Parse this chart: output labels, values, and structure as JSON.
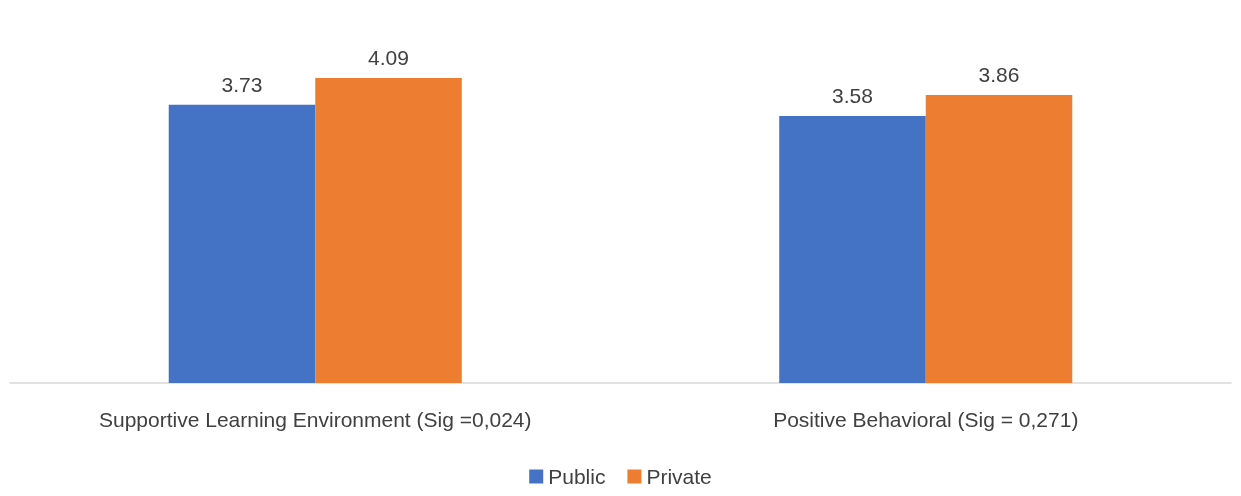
{
  "chart_data": {
    "type": "bar",
    "categories": [
      "Supportive Learning Environment (Sig =0,024)",
      "Positive Behavioral (Sig = 0,271)"
    ],
    "series": [
      {
        "name": "Public",
        "color": "#4472c4",
        "values": [
          3.73,
          3.58
        ]
      },
      {
        "name": "Private",
        "color": "#ed7d31",
        "values": [
          4.09,
          3.86
        ]
      }
    ],
    "data_labels": true,
    "grid": false,
    "legend": "bottom"
  }
}
